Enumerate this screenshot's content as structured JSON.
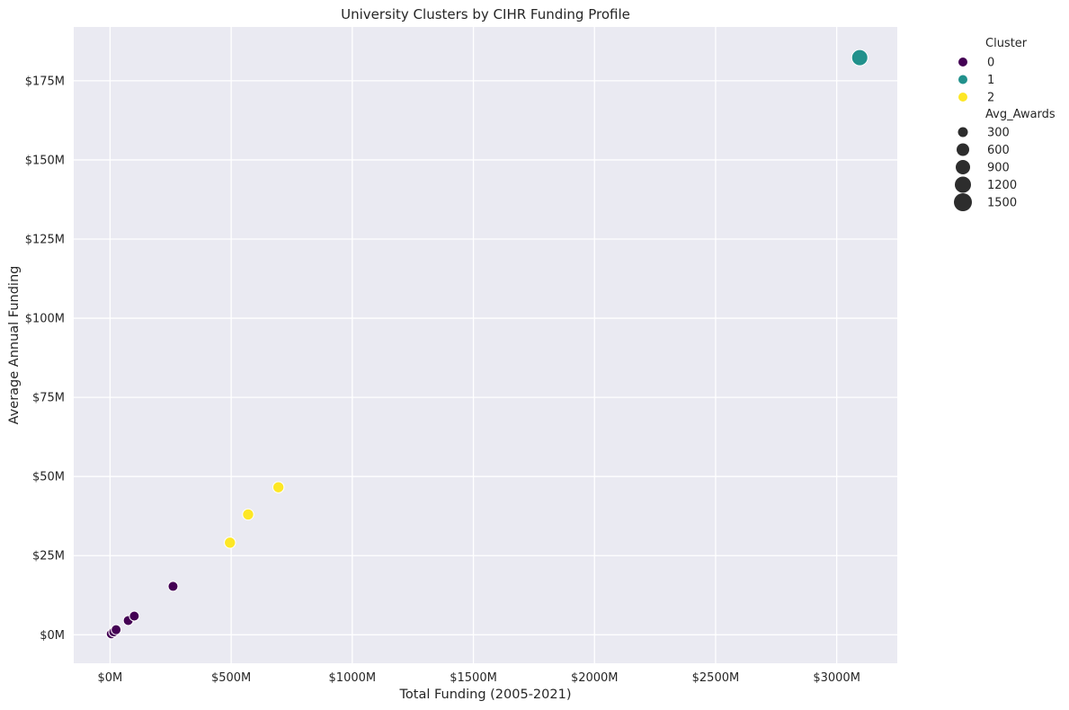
{
  "chart_data": {
    "type": "scatter",
    "title": "University Clusters by CIHR Funding Profile",
    "xlabel": "Total Funding (2005-2021)",
    "ylabel": "Average Annual Funding",
    "xlim": [
      -150,
      3250
    ],
    "ylim": [
      -9,
      192
    ],
    "x_ticks": [
      0,
      500,
      1000,
      1500,
      2000,
      2500,
      3000
    ],
    "x_tick_labels": [
      "$0M",
      "$500M",
      "$1000M",
      "$1500M",
      "$2000M",
      "$2500M",
      "$3000M"
    ],
    "y_ticks": [
      0,
      25,
      50,
      75,
      100,
      125,
      150,
      175
    ],
    "y_tick_labels": [
      "$0M",
      "$25M",
      "$50M",
      "$75M",
      "$100M",
      "$125M",
      "$150M",
      "$175M"
    ],
    "grid": true,
    "background": "#eaeaf2",
    "legend_placement": "outside-right",
    "legend": {
      "hue_title": "Cluster",
      "hue_entries": [
        {
          "label": "0",
          "color": "#440154"
        },
        {
          "label": "1",
          "color": "#21918c"
        },
        {
          "label": "2",
          "color": "#fde725"
        }
      ],
      "size_title": "Avg_Awards",
      "size_entries": [
        "300",
        "600",
        "900",
        "1200",
        "1500"
      ]
    },
    "points": [
      {
        "x": 5,
        "y": 0.3,
        "cluster": "0"
      },
      {
        "x": 15,
        "y": 0.9,
        "cluster": "0"
      },
      {
        "x": 25,
        "y": 1.6,
        "cluster": "0"
      },
      {
        "x": 75,
        "y": 4.5,
        "cluster": "0"
      },
      {
        "x": 100,
        "y": 5.9,
        "cluster": "0"
      },
      {
        "x": 260,
        "y": 15.3,
        "cluster": "0"
      },
      {
        "x": 495,
        "y": 29.1,
        "cluster": "2"
      },
      {
        "x": 570,
        "y": 38.0,
        "cluster": "2"
      },
      {
        "x": 695,
        "y": 46.6,
        "cluster": "2"
      },
      {
        "x": 3095,
        "y": 182.3,
        "cluster": "1"
      }
    ]
  }
}
